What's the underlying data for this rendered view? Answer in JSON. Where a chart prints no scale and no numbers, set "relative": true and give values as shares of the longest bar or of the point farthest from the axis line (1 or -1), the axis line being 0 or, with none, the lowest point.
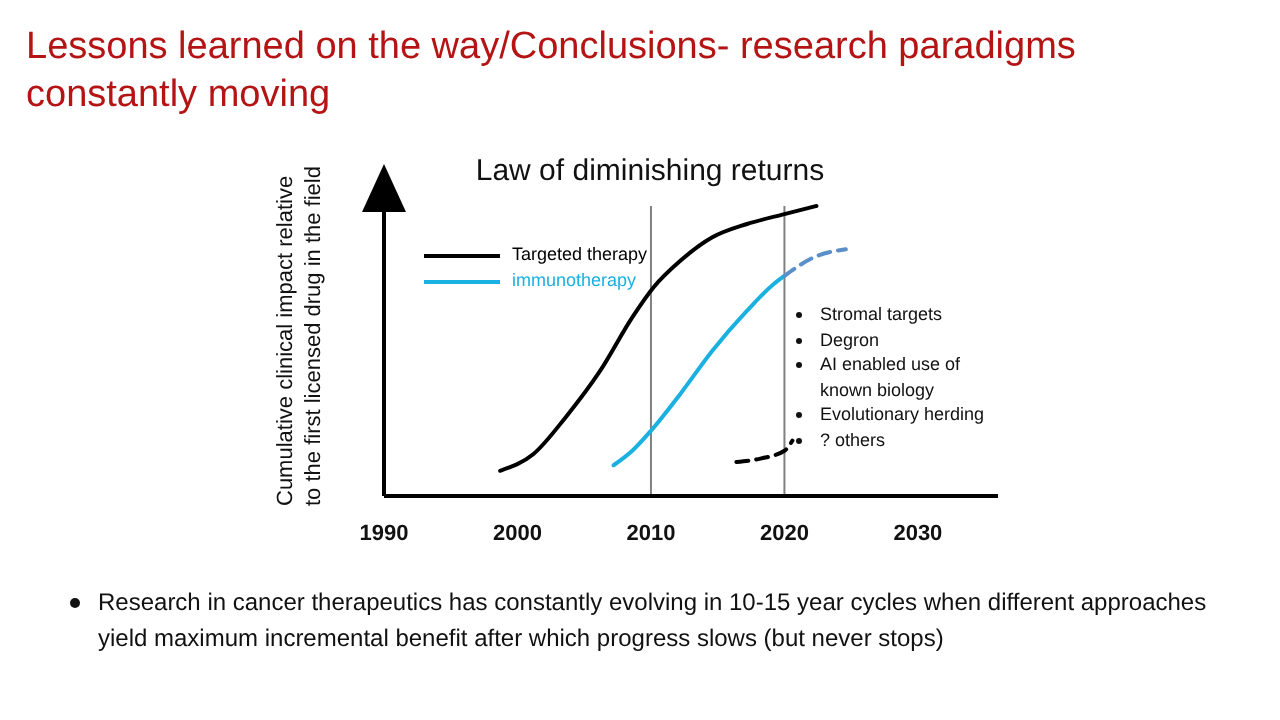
{
  "chart_data": {
    "type": "line",
    "title": "Lessons learned on the way/Conclusions- research paradigms constantly moving",
    "subtitle": "Law of diminishing returns",
    "ylabel": "Cumulative clinical impact relative to the first licensed drug in the field",
    "relative": true,
    "xlim": [
      1990,
      2036
    ],
    "xticks": [
      1990,
      2000,
      2010,
      2020,
      2030
    ],
    "grid": false,
    "legend": "top left",
    "marker": "none",
    "ref_lines": [
      {
        "axis": "x",
        "value": 2010,
        "color": "#808080"
      },
      {
        "axis": "x",
        "value": 2020,
        "color": "#808080"
      }
    ],
    "series": [
      {
        "name": "Targeted therapy",
        "color": "#000000",
        "line_style": "solid",
        "x": [
          1998.7,
          2001.2,
          2003.6,
          2006.2,
          2008.6,
          2010.2,
          2012.2,
          2014.6,
          2017.2,
          2020,
          2022.4
        ],
        "values": [
          0.087,
          0.145,
          0.271,
          0.432,
          0.616,
          0.72,
          0.811,
          0.892,
          0.938,
          0.972,
          1
        ]
      },
      {
        "name": "immunotherapy",
        "color": "#1ab0e0",
        "line_style": "solid",
        "x": [
          2007.2,
          2008.6,
          2010,
          2012.2,
          2014.6,
          2017.2,
          2019.2,
          2020
        ],
        "values": [
          0.106,
          0.156,
          0.225,
          0.352,
          0.501,
          0.639,
          0.731,
          0.759
        ]
      },
      {
        "color": "#5b8fc9",
        "line_style": "dashed",
        "x": [
          2020,
          2022.2,
          2024.6
        ],
        "values": [
          0.759,
          0.823,
          0.851
        ]
      },
      {
        "color": "#000000",
        "line_style": "dashed",
        "x": [
          2016.4,
          2018.2,
          2020,
          2020.6
        ],
        "values": [
          0.117,
          0.129,
          0.156,
          0.191
        ]
      }
    ],
    "annotations": [
      "Stromal targets",
      "Degron",
      "AI enabled use of known biology",
      "Evolutionary herding",
      "? others",
      "Research in cancer therapeutics has constantly evolving in 10-15  year cycles when different approaches yield maximum incremental benefit after which progress slows (but never stops)"
    ]
  }
}
